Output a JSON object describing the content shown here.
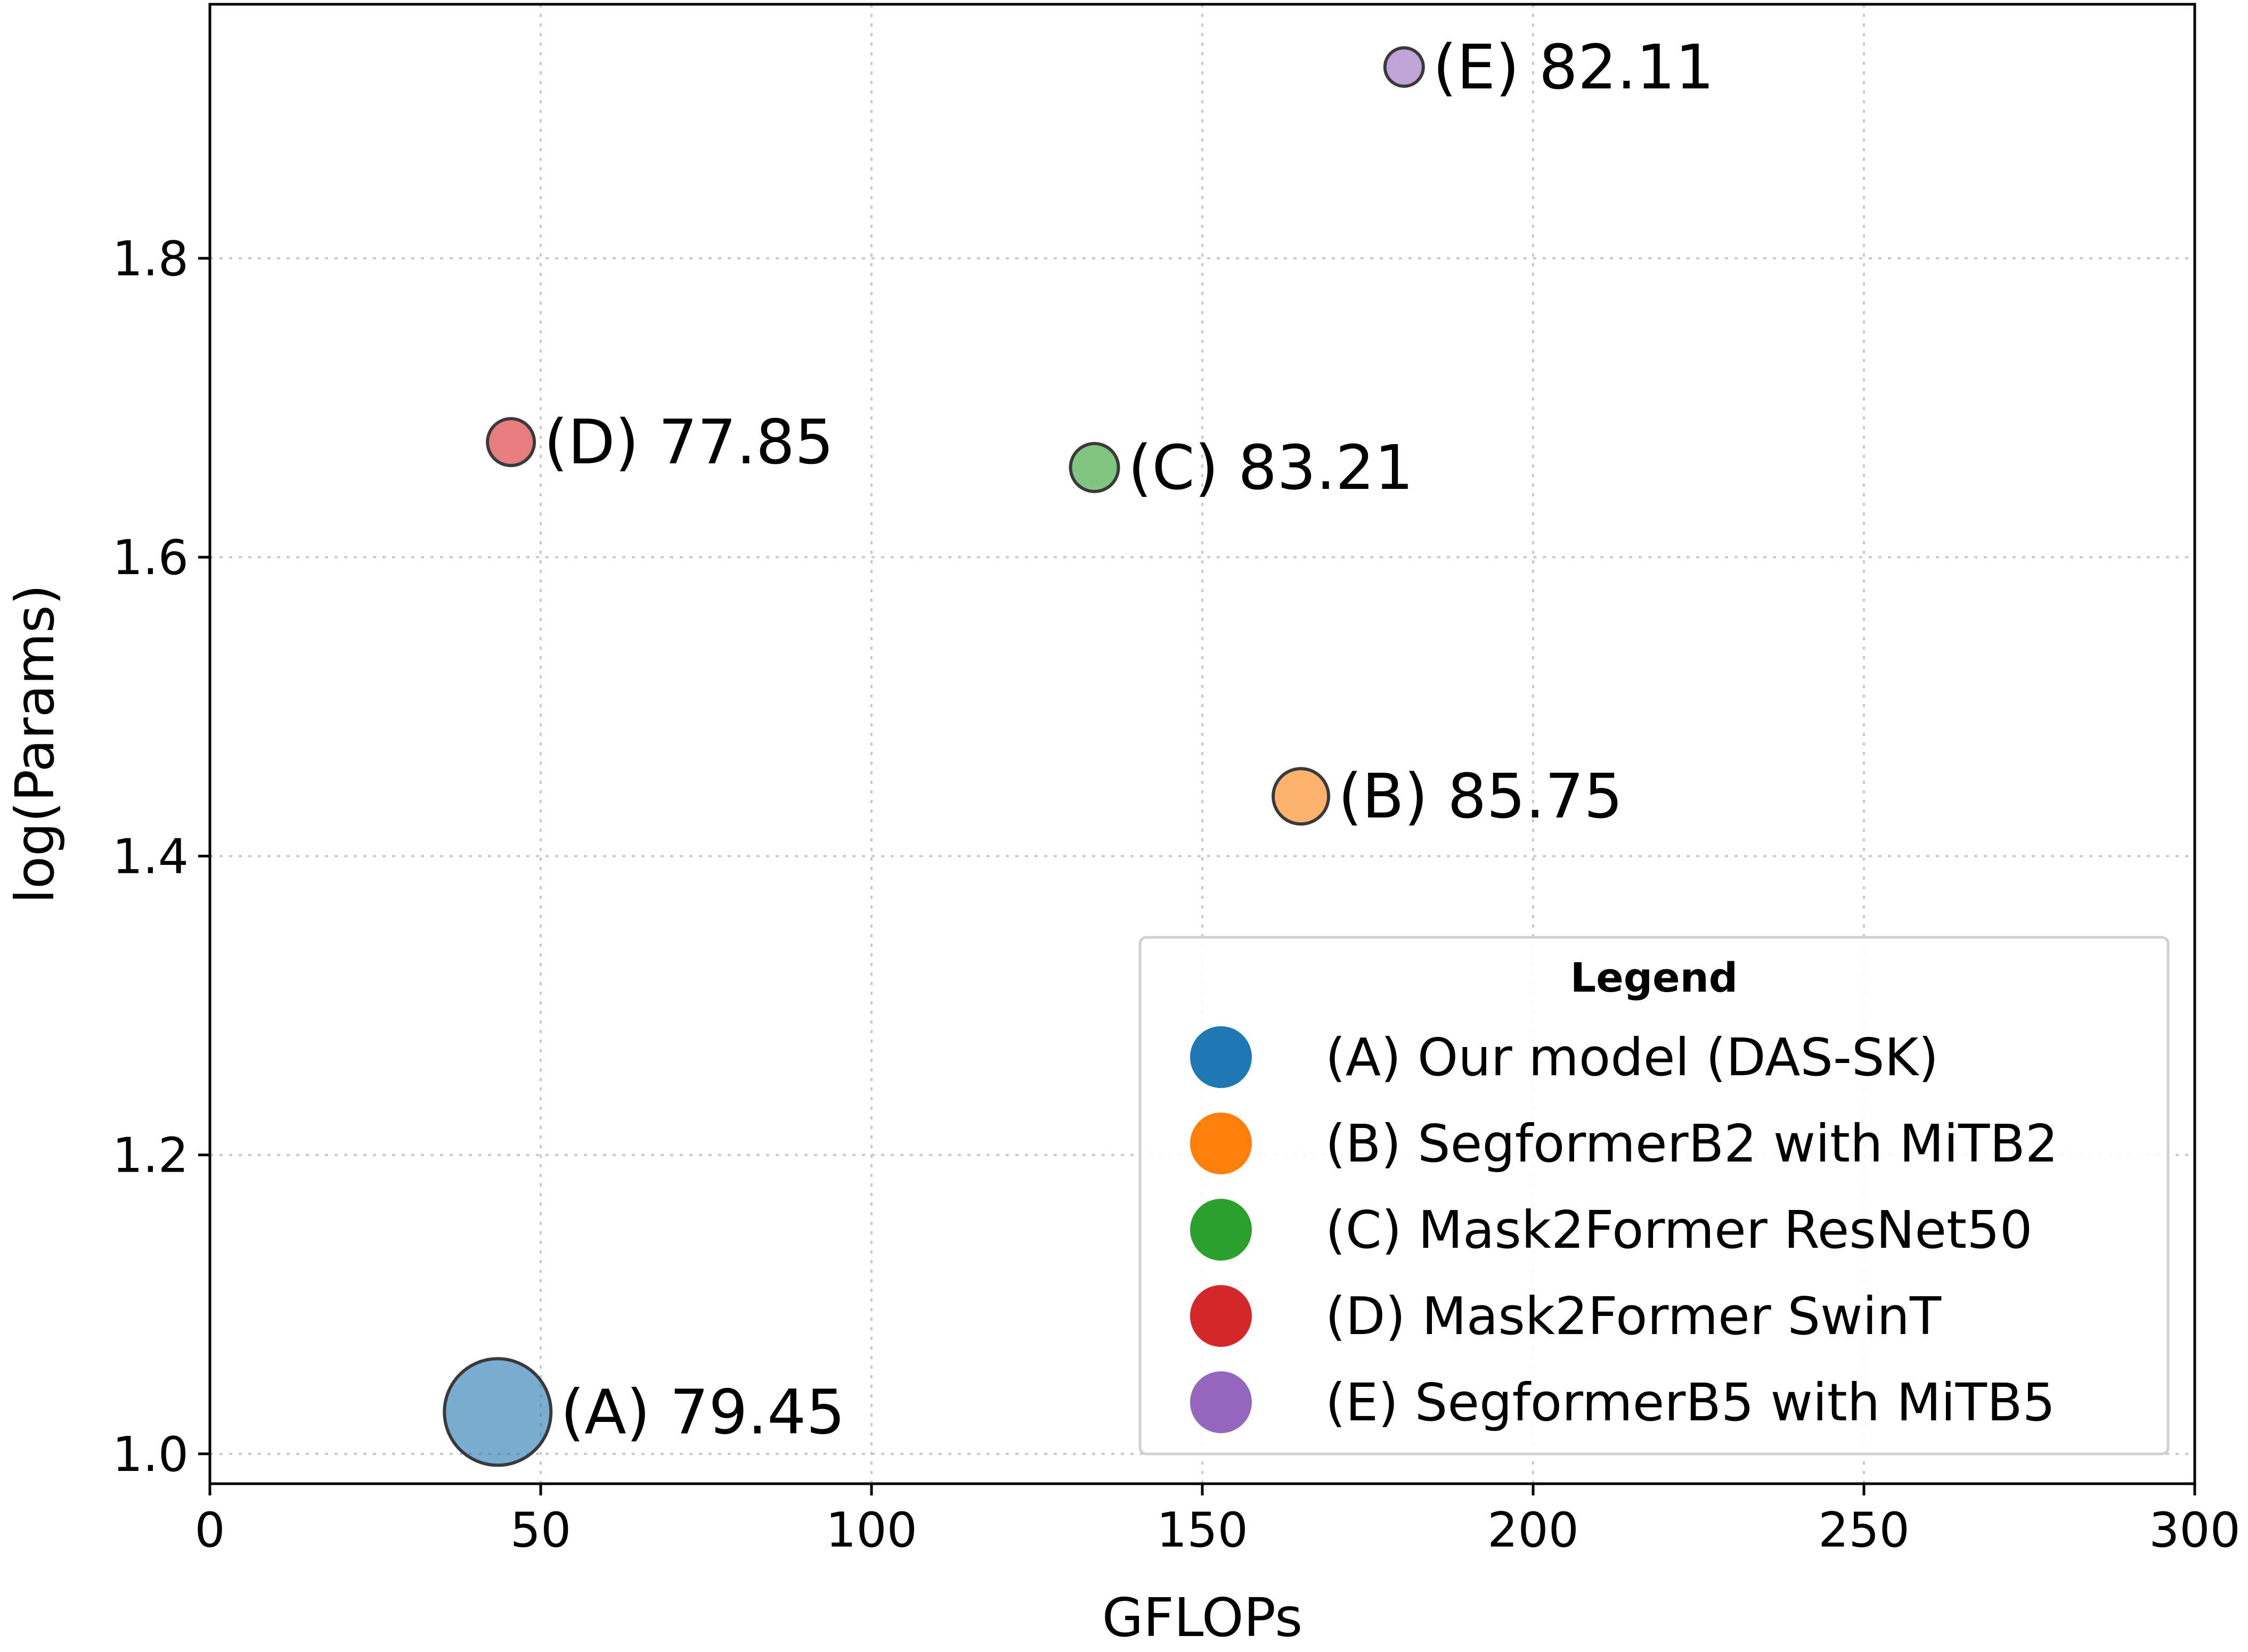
{
  "chart_data": {
    "type": "scatter",
    "title": "",
    "xlabel": "GFLOPs",
    "ylabel": "log(Params)",
    "xlim": [
      0,
      300
    ],
    "ylim": [
      0.98,
      1.97
    ],
    "x_ticks": [
      0,
      50,
      100,
      150,
      200,
      250,
      300
    ],
    "x_tick_labels": [
      "0",
      "50",
      "100",
      "150",
      "200",
      "250",
      "300"
    ],
    "y_ticks": [
      1.0,
      1.2,
      1.4,
      1.6,
      1.8
    ],
    "y_tick_labels": [
      "1.0",
      "1.2",
      "1.4",
      "1.6",
      "1.8"
    ],
    "grid": true,
    "legend": {
      "title": "Legend",
      "placement": "lower-right"
    },
    "points": [
      {
        "id": "A",
        "legend": "(A) Our model (DAS-SK)",
        "label": "(A) 79.45",
        "x": 43.5,
        "y": 1.028,
        "marker_size": 1.0,
        "color": "#1f77b4"
      },
      {
        "id": "B",
        "legend": "(B) SegformerB2 with MiTB2",
        "label": "(B) 85.75",
        "x": 164.9,
        "y": 1.44,
        "marker_size": 0.52,
        "color": "#ff7f0e"
      },
      {
        "id": "C",
        "legend": "(C) Mask2Former ResNet50",
        "label": "(C) 83.21",
        "x": 133.7,
        "y": 1.66,
        "marker_size": 0.45,
        "color": "#2ca02c"
      },
      {
        "id": "D",
        "legend": "(D) Mask2Former SwinT",
        "label": "(D) 77.85",
        "x": 45.5,
        "y": 1.677,
        "marker_size": 0.44,
        "color": "#d62728"
      },
      {
        "id": "E",
        "legend": "(E) SegformerB5 with MiTB5",
        "label": "(E) 82.11",
        "x": 180.5,
        "y": 1.928,
        "marker_size": 0.36,
        "color": "#9467bd"
      }
    ]
  }
}
